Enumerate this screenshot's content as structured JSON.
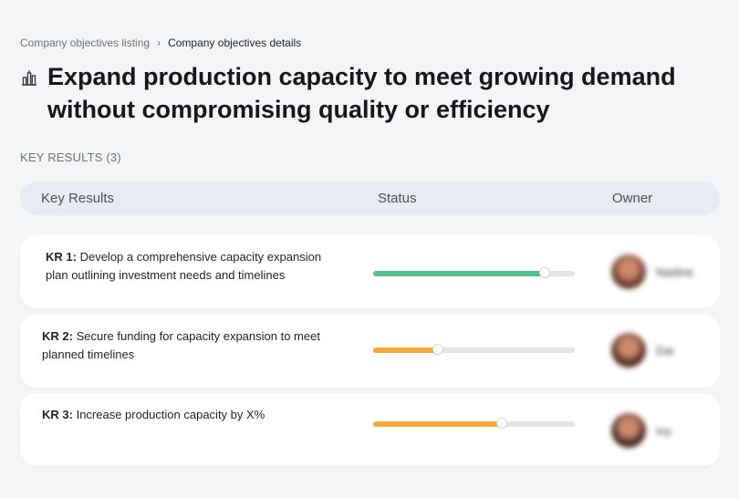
{
  "breadcrumb": {
    "parent": "Company objectives listing",
    "separator": "›",
    "current": "Company objectives details"
  },
  "objective": {
    "icon": "building-chart-icon",
    "title": "Expand production capacity to meet growing demand without compromising quality or efficiency"
  },
  "key_results": {
    "section_label": "KEY RESULTS (3)",
    "columns": {
      "key_results": "Key Results",
      "status": "Status",
      "owner": "Owner"
    },
    "items": [
      {
        "code": "KR 1:",
        "text": "Develop a comprehensive capacity expansion plan outlining investment needs and timelines",
        "progress": 0.85,
        "progress_color": "#55c08b",
        "owner": "Nadine",
        "avatar_color": "#6b3a30"
      },
      {
        "code": "KR 2:",
        "text": "Secure funding for capacity expansion to meet planned timelines",
        "progress": 0.32,
        "progress_color": "#f7a83c",
        "owner": "Dai",
        "avatar_color": "#5a2d26"
      },
      {
        "code": "KR 3:",
        "text": "Increase production capacity by X%",
        "progress": 0.64,
        "progress_color": "#f7a83c",
        "owner": "Ivy",
        "avatar_color": "#4a2a24"
      }
    ]
  }
}
